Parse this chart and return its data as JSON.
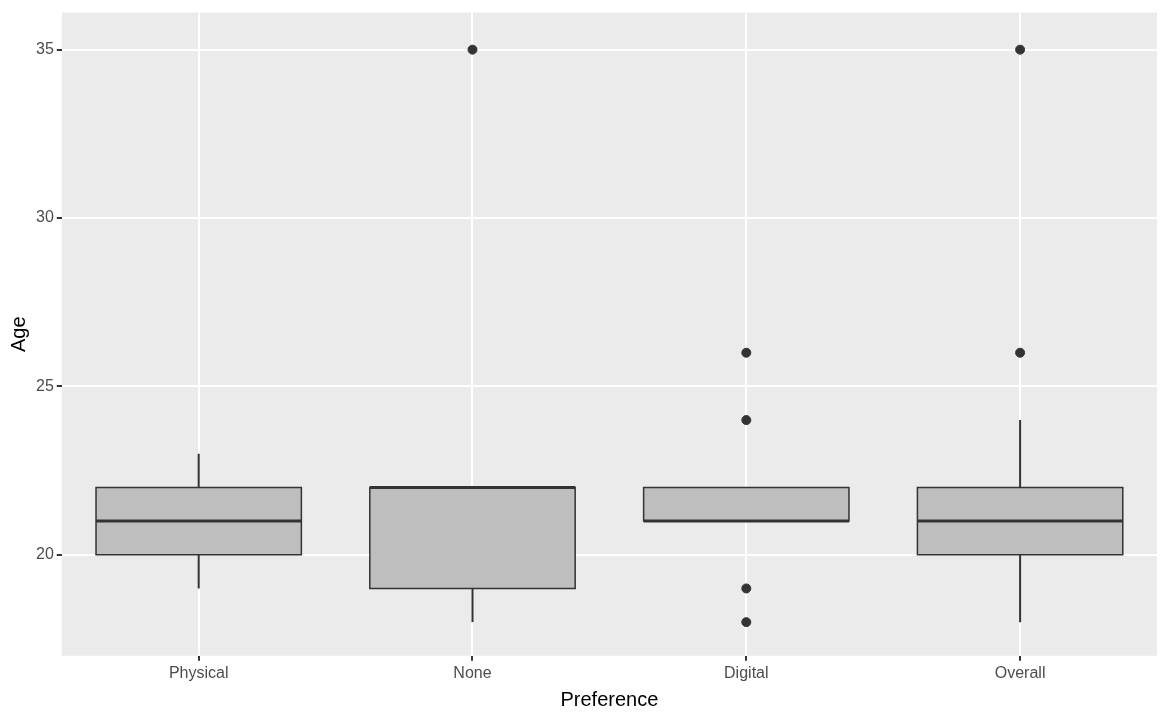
{
  "chart_data": {
    "type": "box",
    "xlabel": "Preference",
    "ylabel": "Age",
    "categories": [
      "Physical",
      "None",
      "Digital",
      "Overall"
    ],
    "series": [
      {
        "color": "#bebebe",
        "boxes": [
          {
            "low": 19,
            "q1": 20,
            "median": 21,
            "q3": 22,
            "high": 23
          },
          {
            "low": 18,
            "q1": 19,
            "median": 22,
            "q3": 22,
            "high": 22,
            "outliers": [
              35
            ]
          },
          {
            "low": 21,
            "q1": 21,
            "median": 21,
            "q3": 22,
            "high": 22,
            "outliers": [
              18,
              19,
              24,
              26
            ]
          },
          {
            "low": 18,
            "q1": 20,
            "median": 21,
            "q3": 22,
            "high": 24,
            "outliers": [
              26,
              35
            ]
          }
        ]
      }
    ],
    "ylim": [
      17,
      36.1
    ],
    "yticks": [
      20,
      25,
      30,
      35
    ],
    "grid": true
  }
}
